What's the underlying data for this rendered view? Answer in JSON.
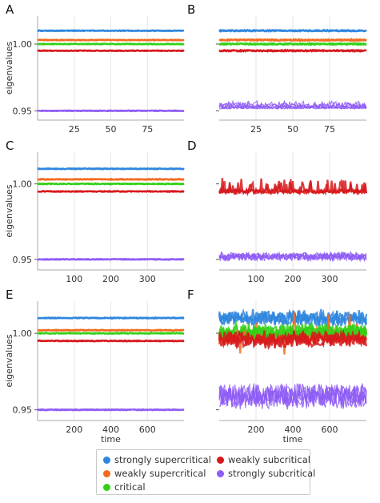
{
  "chart_data": [
    {
      "panel": "A",
      "type": "line",
      "ylabel": "eigenvalues",
      "xlabel": "",
      "x_ticks": [
        25,
        50,
        75
      ],
      "y_ticks": [
        "0.95",
        "1.00"
      ],
      "xlim": [
        0,
        100
      ],
      "ylim": [
        0.943,
        1.021
      ],
      "noise": "low",
      "series": [
        {
          "name": "strongly supercritical",
          "level": 1.01
        },
        {
          "name": "weakly supercritical",
          "level": 1.003
        },
        {
          "name": "critical",
          "level": 1.0
        },
        {
          "name": "weakly subcritical",
          "level": 0.995
        },
        {
          "name": "strongly subcritical",
          "level": 0.95
        }
      ]
    },
    {
      "panel": "B",
      "type": "line",
      "ylabel": "",
      "xlabel": "",
      "x_ticks": [
        25,
        50,
        75
      ],
      "y_ticks": [
        "0.95",
        "1.00"
      ],
      "xlim": [
        0,
        100
      ],
      "ylim": [
        0.943,
        1.021
      ],
      "noise": "medium",
      "series": [
        {
          "name": "strongly supercritical",
          "level": 1.01
        },
        {
          "name": "weakly supercritical",
          "level": 1.003
        },
        {
          "name": "critical",
          "level": 1.0
        },
        {
          "name": "weakly subcritical",
          "level": 0.995
        },
        {
          "name": "strongly subcritical",
          "level": 0.952
        }
      ]
    },
    {
      "panel": "C",
      "type": "line",
      "ylabel": "eigenvalues",
      "xlabel": "",
      "x_ticks": [
        100,
        200,
        300
      ],
      "y_ticks": [
        "0.95",
        "1.00"
      ],
      "xlim": [
        0,
        400
      ],
      "ylim": [
        0.943,
        1.021
      ],
      "noise": "low",
      "series": [
        {
          "name": "strongly supercritical",
          "level": 1.01
        },
        {
          "name": "weakly supercritical",
          "level": 1.003
        },
        {
          "name": "critical",
          "level": 1.0
        },
        {
          "name": "weakly subcritical",
          "level": 0.995
        },
        {
          "name": "strongly subcritical",
          "level": 0.95
        }
      ]
    },
    {
      "panel": "D",
      "type": "line",
      "ylabel": "",
      "xlabel": "",
      "x_ticks": [
        100,
        200,
        300
      ],
      "y_ticks": [
        "0.95",
        "1.00"
      ],
      "xlim": [
        0,
        400
      ],
      "ylim": [
        0.943,
        1.021
      ],
      "noise": "high",
      "series": [
        {
          "name": "weakly subcritical",
          "level": 0.995
        },
        {
          "name": "strongly subcritical",
          "level": 0.951
        }
      ]
    },
    {
      "panel": "E",
      "type": "line",
      "ylabel": "eigenvalues",
      "xlabel": "time",
      "x_ticks": [
        200,
        400,
        600
      ],
      "y_ticks": [
        "0.95",
        "1.00"
      ],
      "xlim": [
        0,
        800
      ],
      "ylim": [
        0.943,
        1.021
      ],
      "noise": "low",
      "series": [
        {
          "name": "strongly supercritical",
          "level": 1.01
        },
        {
          "name": "weakly supercritical",
          "level": 1.002
        },
        {
          "name": "critical",
          "level": 1.0
        },
        {
          "name": "weakly subcritical",
          "level": 0.995
        },
        {
          "name": "strongly subcritical",
          "level": 0.95
        }
      ]
    },
    {
      "panel": "F",
      "type": "line",
      "ylabel": "",
      "xlabel": "time",
      "x_ticks": [
        200,
        400,
        600
      ],
      "y_ticks": [
        "0.95",
        "1.00"
      ],
      "xlim": [
        0,
        800
      ],
      "ylim": [
        0.943,
        1.021
      ],
      "noise": "very high",
      "series": [
        {
          "name": "strongly supercritical",
          "level": 1.01
        },
        {
          "name": "weakly supercritical",
          "level": 0.998
        },
        {
          "name": "critical",
          "level": 1.001
        },
        {
          "name": "weakly subcritical",
          "level": 0.996
        },
        {
          "name": "strongly subcritical",
          "level": 0.955
        }
      ]
    }
  ],
  "legend": {
    "placement": "bottom-center",
    "items": [
      {
        "label": "strongly supercritical",
        "color": "#2e86de"
      },
      {
        "label": "weakly subcritical",
        "color": "#d7191c"
      },
      {
        "label": "weakly supercritical",
        "color": "#f26b1d"
      },
      {
        "label": "strongly subcritical",
        "color": "#8e5cf5"
      },
      {
        "label": "critical",
        "color": "#33d017"
      }
    ]
  },
  "colors": {
    "strongly supercritical": "#2e86de",
    "weakly supercritical": "#f26b1d",
    "critical": "#33d017",
    "weakly subcritical": "#d7191c",
    "strongly subcritical": "#8e5cf5"
  }
}
